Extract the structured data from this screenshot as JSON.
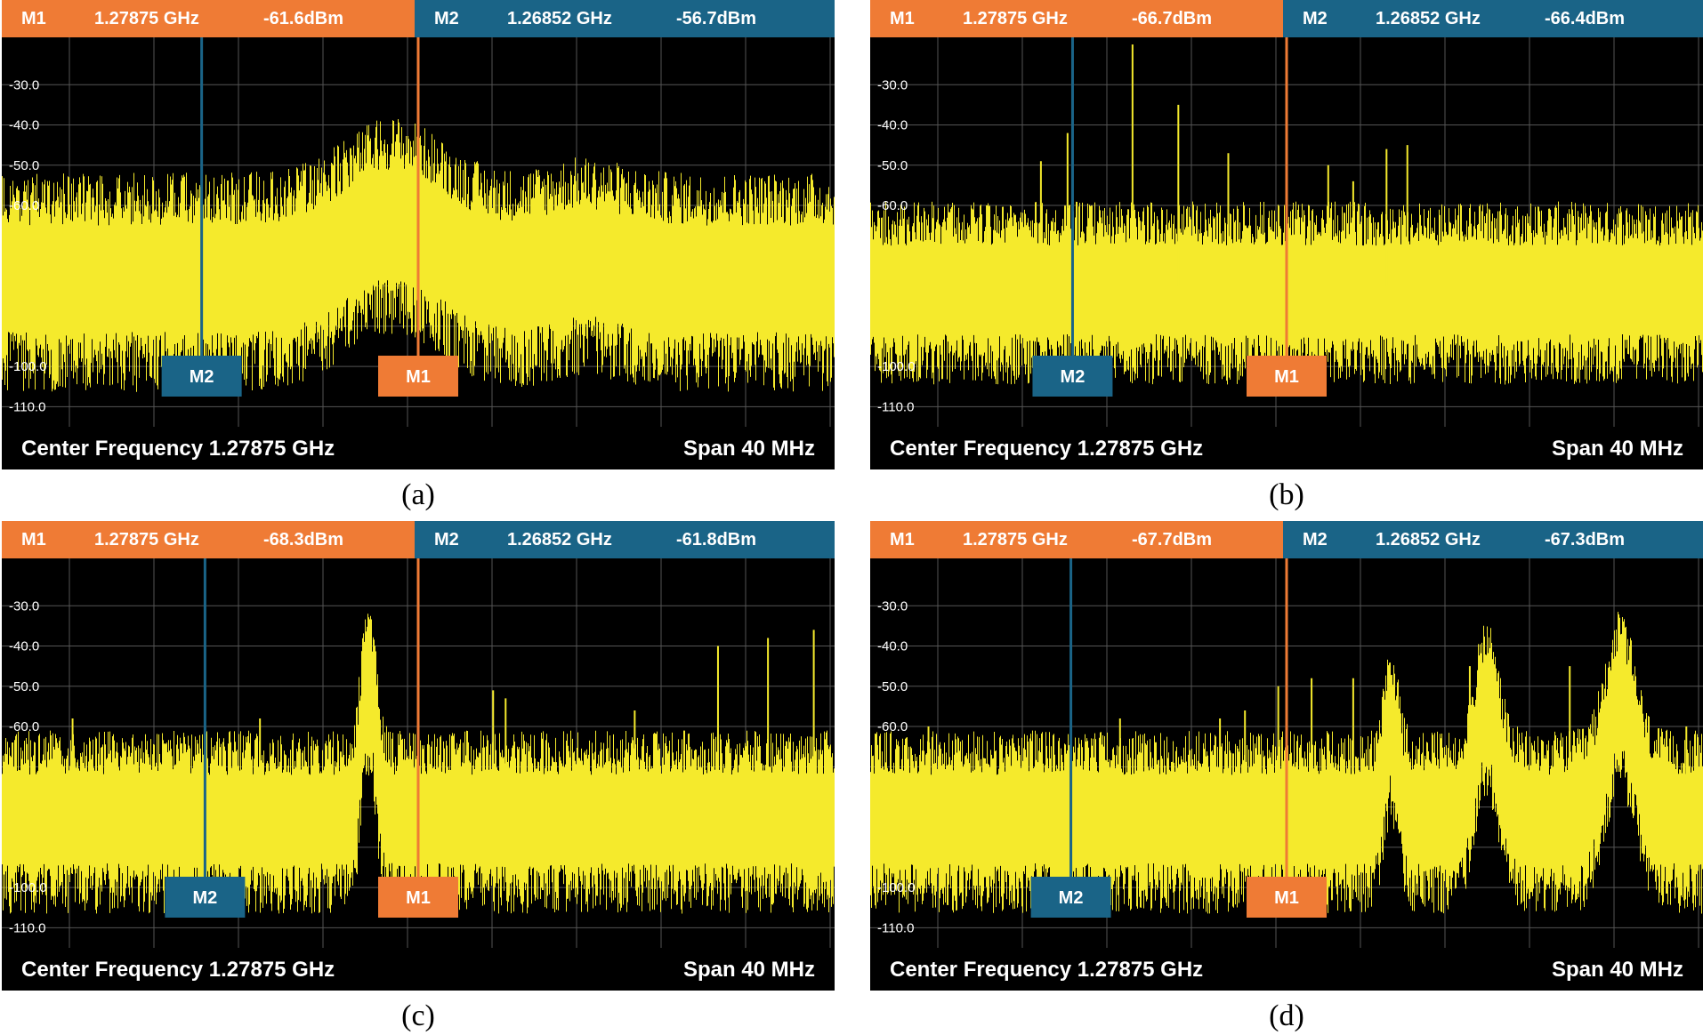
{
  "chart_data": [
    {
      "type": "line",
      "caption": "(a)",
      "y_ticks": [
        "-30.0",
        "-40.0",
        "-50.0",
        "-60.0",
        "-100.0",
        "-110.0"
      ],
      "ylim": [
        -115,
        -20
      ],
      "footer": {
        "center": "Center Frequency 1.27875 GHz",
        "span": "Span 40 MHz"
      },
      "markers": [
        {
          "name": "M1",
          "label": "M1",
          "freq": "1.27875 GHz",
          "level": "-61.6dBm",
          "x_frac": 0.5
        },
        {
          "name": "M2",
          "label": "M2",
          "freq": "1.26852 GHz",
          "level": "-56.7dBm",
          "x_frac": 0.24
        }
      ],
      "series": {
        "name": "spectrum",
        "floor": -77,
        "spread": 6,
        "bumps": [
          {
            "center": 0.47,
            "width": 0.08,
            "amp": 14
          },
          {
            "center": 0.7,
            "width": 0.06,
            "amp": 4
          }
        ],
        "spikes": []
      }
    },
    {
      "type": "line",
      "caption": "(b)",
      "y_ticks": [
        "-30.0",
        "-40.0",
        "-50.0",
        "-60.0",
        "-100.0",
        "-110.0"
      ],
      "ylim": [
        -115,
        -20
      ],
      "footer": {
        "center": "Center Frequency 1.27875 GHz",
        "span": "Span 40 MHz"
      },
      "markers": [
        {
          "name": "M1",
          "label": "M1",
          "freq": "1.27875 GHz",
          "level": "-66.7dBm",
          "x_frac": 0.5
        },
        {
          "name": "M2",
          "label": "M2",
          "freq": "1.26852 GHz",
          "level": "-66.4dBm",
          "x_frac": 0.243
        }
      ],
      "series": {
        "name": "spectrum",
        "floor": -80,
        "spread": 5,
        "bumps": [],
        "spikes": [
          {
            "pos": 0.14,
            "top": -60
          },
          {
            "pos": 0.205,
            "top": -49
          },
          {
            "pos": 0.237,
            "top": -42
          },
          {
            "pos": 0.315,
            "top": -20
          },
          {
            "pos": 0.37,
            "top": -35
          },
          {
            "pos": 0.43,
            "top": -47
          },
          {
            "pos": 0.55,
            "top": -50
          },
          {
            "pos": 0.58,
            "top": -54
          },
          {
            "pos": 0.62,
            "top": -46
          },
          {
            "pos": 0.645,
            "top": -45
          }
        ]
      }
    },
    {
      "type": "line",
      "caption": "(c)",
      "y_ticks": [
        "-30.0",
        "-40.0",
        "-50.0",
        "-60.0",
        "-100.0",
        "-110.0"
      ],
      "ylim": [
        -115,
        -20
      ],
      "footer": {
        "center": "Center Frequency 1.27875 GHz",
        "span": "Span 40 MHz"
      },
      "markers": [
        {
          "name": "M1",
          "label": "M1",
          "freq": "1.27875 GHz",
          "level": "-68.3dBm",
          "x_frac": 0.5
        },
        {
          "name": "M2",
          "label": "M2",
          "freq": "1.26852 GHz",
          "level": "-61.8dBm",
          "x_frac": 0.244
        }
      ],
      "series": {
        "name": "spectrum",
        "floor": -82,
        "spread": 5,
        "bumps": [
          {
            "center": 0.44,
            "width": 0.012,
            "amp": 34
          }
        ],
        "spikes": [
          {
            "pos": 0.085,
            "top": -58
          },
          {
            "pos": 0.31,
            "top": -58
          },
          {
            "pos": 0.59,
            "top": -51
          },
          {
            "pos": 0.605,
            "top": -53
          },
          {
            "pos": 0.76,
            "top": -56
          },
          {
            "pos": 0.86,
            "top": -40
          },
          {
            "pos": 0.92,
            "top": -38
          },
          {
            "pos": 0.975,
            "top": -36
          }
        ]
      }
    },
    {
      "type": "line",
      "caption": "(d)",
      "y_ticks": [
        "-30.0",
        "-40.0",
        "-50.0",
        "-60.0",
        "-100.0",
        "-110.0"
      ],
      "ylim": [
        -115,
        -20
      ],
      "footer": {
        "center": "Center Frequency 1.27875 GHz",
        "span": "Span 40 MHz"
      },
      "markers": [
        {
          "name": "M1",
          "label": "M1",
          "freq": "1.27875 GHz",
          "level": "-67.7dBm",
          "x_frac": 0.5
        },
        {
          "name": "M2",
          "label": "M2",
          "freq": "1.26852 GHz",
          "level": "-67.3dBm",
          "x_frac": 0.241
        }
      ],
      "series": {
        "name": "spectrum",
        "floor": -82,
        "spread": 5,
        "bumps": [
          {
            "center": 0.625,
            "width": 0.012,
            "amp": 22
          },
          {
            "center": 0.74,
            "width": 0.02,
            "amp": 28
          },
          {
            "center": 0.9,
            "width": 0.025,
            "amp": 30
          }
        ],
        "spikes": [
          {
            "pos": 0.07,
            "top": -60
          },
          {
            "pos": 0.3,
            "top": -58
          },
          {
            "pos": 0.42,
            "top": -58
          },
          {
            "pos": 0.45,
            "top": -56
          },
          {
            "pos": 0.49,
            "top": -50
          },
          {
            "pos": 0.53,
            "top": -48
          },
          {
            "pos": 0.58,
            "top": -48
          },
          {
            "pos": 0.72,
            "top": -45
          },
          {
            "pos": 0.84,
            "top": -45
          },
          {
            "pos": 0.98,
            "top": -60
          }
        ]
      }
    }
  ]
}
